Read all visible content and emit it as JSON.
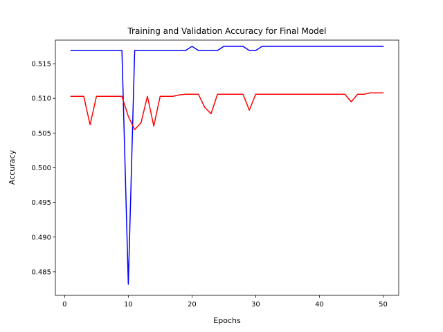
{
  "chart_data": {
    "type": "line",
    "title": "Training and Validation Accuracy for Final Model",
    "xlabel": "Epochs",
    "ylabel": "Accuracy",
    "xlim": [
      -1.45,
      52.45
    ],
    "ylim": [
      0.4816,
      0.5184
    ],
    "xticks": [
      0,
      10,
      20,
      30,
      40,
      50
    ],
    "xtick_labels": [
      "0",
      "10",
      "20",
      "30",
      "40",
      "50"
    ],
    "yticks": [
      0.485,
      0.49,
      0.495,
      0.5,
      0.505,
      0.51,
      0.515
    ],
    "ytick_labels": [
      "0.485",
      "0.490",
      "0.495",
      "0.500",
      "0.505",
      "0.510",
      "0.515"
    ],
    "grid": false,
    "legend": false,
    "x": [
      1,
      2,
      3,
      4,
      5,
      6,
      7,
      8,
      9,
      10,
      11,
      12,
      13,
      14,
      15,
      16,
      17,
      18,
      19,
      20,
      21,
      22,
      23,
      24,
      25,
      26,
      27,
      28,
      29,
      30,
      31,
      32,
      33,
      34,
      35,
      36,
      37,
      38,
      39,
      40,
      41,
      42,
      43,
      44,
      45,
      46,
      47,
      48,
      49,
      50
    ],
    "series": [
      {
        "color": "#0000ff",
        "values": [
          0.5169,
          0.5169,
          0.5169,
          0.5169,
          0.5169,
          0.5169,
          0.5169,
          0.5169,
          0.5169,
          0.4832,
          0.5169,
          0.5169,
          0.5169,
          0.5169,
          0.5169,
          0.5169,
          0.5169,
          0.5169,
          0.5169,
          0.5175,
          0.5169,
          0.5169,
          0.5169,
          0.5169,
          0.5175,
          0.5175,
          0.5175,
          0.5175,
          0.5169,
          0.5169,
          0.5175,
          0.5175,
          0.5175,
          0.5175,
          0.5175,
          0.5175,
          0.5175,
          0.5175,
          0.5175,
          0.5175,
          0.5175,
          0.5175,
          0.5175,
          0.5175,
          0.5175,
          0.5175,
          0.5175,
          0.5175,
          0.5175,
          0.5175
        ]
      },
      {
        "color": "#ff0000",
        "values": [
          0.5103,
          0.5103,
          0.5103,
          0.5062,
          0.5103,
          0.5103,
          0.5103,
          0.5103,
          0.5103,
          0.5074,
          0.5055,
          0.5065,
          0.5103,
          0.506,
          0.5103,
          0.5103,
          0.5103,
          0.5105,
          0.5106,
          0.5106,
          0.5106,
          0.5087,
          0.5078,
          0.5106,
          0.5106,
          0.5106,
          0.5106,
          0.5106,
          0.5083,
          0.5106,
          0.5106,
          0.5106,
          0.5106,
          0.5106,
          0.5106,
          0.5106,
          0.5106,
          0.5106,
          0.5106,
          0.5106,
          0.5106,
          0.5106,
          0.5106,
          0.5106,
          0.5095,
          0.5106,
          0.5106,
          0.5108,
          0.5108,
          0.5108
        ]
      }
    ]
  }
}
